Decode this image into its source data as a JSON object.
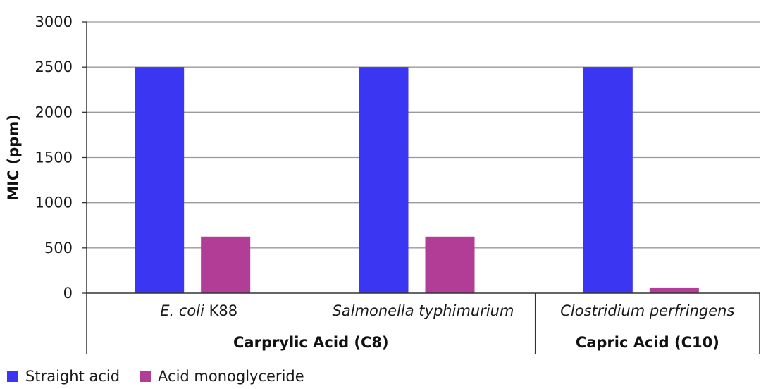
{
  "chart_data": {
    "type": "bar",
    "ylabel": "MIC (ppm)",
    "ylim": [
      0,
      3000
    ],
    "yticks": [
      0,
      500,
      1000,
      1500,
      2000,
      2500,
      3000
    ],
    "grid": true,
    "categories": [
      {
        "parts": [
          {
            "text": "E. coli",
            "italic": true
          },
          {
            "text": " K88",
            "italic": false
          }
        ],
        "label": "E. coli K88"
      },
      {
        "parts": [
          {
            "text": "Salmonella typhimurium",
            "italic": true
          }
        ],
        "label": "Salmonella typhimurium"
      },
      {
        "parts": [
          {
            "text": "Clostridium perfringens",
            "italic": true
          }
        ],
        "label": "Clostridium perfringens"
      }
    ],
    "groups": [
      {
        "label": "Carprylic Acid (C8)",
        "categories": [
          0,
          1
        ]
      },
      {
        "label": "Capric Acid (C10)",
        "categories": [
          2
        ]
      }
    ],
    "series": [
      {
        "name": "Straight acid",
        "color": "#3b36f2",
        "values": [
          2500,
          2500,
          2500
        ]
      },
      {
        "name": "Acid monoglyceride",
        "color": "#b23d96",
        "values": [
          625,
          625,
          63
        ]
      }
    ],
    "legend_position": "bottom-left"
  }
}
